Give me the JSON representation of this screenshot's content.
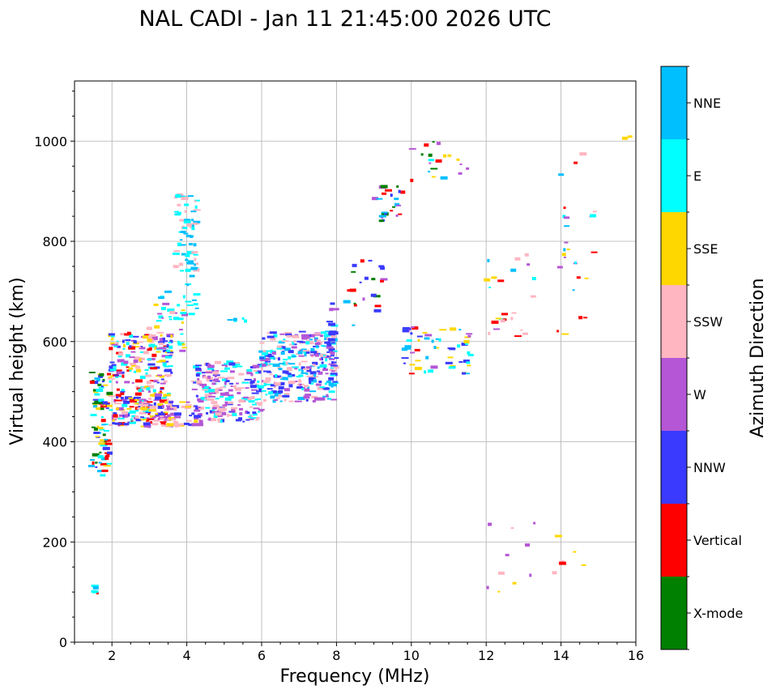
{
  "chart_data": {
    "type": "scatter",
    "title": "NAL CADI - Jan 11 21:45:00 2026 UTC",
    "xlabel": "Frequency (MHz)",
    "ylabel": "Virtual height (km)",
    "xlim": [
      1.0,
      16.0
    ],
    "ylim": [
      0,
      1120
    ],
    "xticks": [
      2,
      4,
      6,
      8,
      10,
      12,
      14,
      16
    ],
    "yticks": [
      0,
      200,
      400,
      600,
      800,
      1000
    ],
    "grid": true,
    "colorbar": {
      "label": "Azimuth Direction",
      "categories": [
        {
          "name": "X-mode",
          "color": "#008000"
        },
        {
          "name": "Vertical",
          "color": "#ff0000"
        },
        {
          "name": "NNW",
          "color": "#3a3aff"
        },
        {
          "name": "W",
          "color": "#b556d6"
        },
        {
          "name": "SSW",
          "color": "#ffb6c1"
        },
        {
          "name": "SSE",
          "color": "#ffd700"
        },
        {
          "name": "E",
          "color": "#00ffff"
        },
        {
          "name": "NNE",
          "color": "#00bfff"
        }
      ]
    },
    "clusters": [
      {
        "x": [
          1.45,
          1.95
        ],
        "y": [
          330,
          540
        ],
        "n": 90,
        "dirs": [
          "Vertical",
          "NNW",
          "SSE",
          "E",
          "X-mode",
          "NNE"
        ]
      },
      {
        "x": [
          1.5,
          1.65
        ],
        "y": [
          90,
          115
        ],
        "n": 6,
        "dirs": [
          "E",
          "NNE",
          "Vertical"
        ]
      },
      {
        "x": [
          1.95,
          3.6
        ],
        "y": [
          430,
          620
        ],
        "n": 320,
        "dirs": [
          "SSE",
          "SSW",
          "E",
          "W",
          "NNW",
          "Vertical"
        ]
      },
      {
        "x": [
          3.0,
          3.95
        ],
        "y": [
          580,
          680
        ],
        "n": 30,
        "dirs": [
          "E",
          "SSW",
          "SSE",
          "W"
        ]
      },
      {
        "x": [
          2.7,
          4.4
        ],
        "y": [
          430,
          480
        ],
        "n": 70,
        "dirs": [
          "W",
          "NNW",
          "SSE",
          "SSW"
        ]
      },
      {
        "x": [
          3.7,
          4.3
        ],
        "y": [
          730,
          895
        ],
        "n": 70,
        "dirs": [
          "E",
          "NNE",
          "SSW"
        ]
      },
      {
        "x": [
          3.2,
          4.3
        ],
        "y": [
          620,
          720
        ],
        "n": 18,
        "dirs": [
          "E",
          "NNE"
        ]
      },
      {
        "x": [
          4.2,
          6.0
        ],
        "y": [
          440,
          560
        ],
        "n": 220,
        "dirs": [
          "W",
          "NNW",
          "SSW",
          "E"
        ]
      },
      {
        "x": [
          5.0,
          5.6
        ],
        "y": [
          640,
          648
        ],
        "n": 5,
        "dirs": [
          "E",
          "NNE"
        ]
      },
      {
        "x": [
          6.0,
          8.0
        ],
        "y": [
          480,
          620
        ],
        "n": 300,
        "dirs": [
          "NNW",
          "W",
          "SSW",
          "E",
          "NNE"
        ]
      },
      {
        "x": [
          7.8,
          8.1
        ],
        "y": [
          540,
          705
        ],
        "n": 14,
        "dirs": [
          "NNW",
          "W",
          "E"
        ]
      },
      {
        "x": [
          8.2,
          9.3
        ],
        "y": [
          620,
          770
        ],
        "n": 22,
        "dirs": [
          "NNE",
          "NNW",
          "X-mode",
          "W",
          "Vertical"
        ]
      },
      {
        "x": [
          9.0,
          9.8
        ],
        "y": [
          840,
          910
        ],
        "n": 24,
        "dirs": [
          "X-mode",
          "Vertical",
          "NNW",
          "NNE",
          "W"
        ]
      },
      {
        "x": [
          9.8,
          11.6
        ],
        "y": [
          535,
          630
        ],
        "n": 60,
        "dirs": [
          "NNW",
          "NNE",
          "E",
          "W",
          "Vertical",
          "SSE"
        ]
      },
      {
        "x": [
          10.0,
          11.6
        ],
        "y": [
          920,
          1020
        ],
        "n": 20,
        "dirs": [
          "NNE",
          "E",
          "SSE",
          "Vertical",
          "X-mode",
          "W"
        ]
      },
      {
        "x": [
          12.0,
          13.3
        ],
        "y": [
          600,
          775
        ],
        "n": 24,
        "dirs": [
          "SSE",
          "NNE",
          "W",
          "Vertical",
          "SSW",
          "E"
        ]
      },
      {
        "x": [
          12.0,
          13.3
        ],
        "y": [
          90,
          240
        ],
        "n": 10,
        "dirs": [
          "SSW",
          "SSE",
          "W",
          "Vertical"
        ]
      },
      {
        "x": [
          13.8,
          15.0
        ],
        "y": [
          600,
          995
        ],
        "n": 26,
        "dirs": [
          "W",
          "SSE",
          "Vertical",
          "NNE",
          "SSW",
          "E"
        ]
      },
      {
        "x": [
          13.8,
          14.8
        ],
        "y": [
          115,
          225
        ],
        "n": 6,
        "dirs": [
          "SSE",
          "Vertical",
          "SSW"
        ]
      },
      {
        "x": [
          15.7,
          16.0
        ],
        "y": [
          1005,
          1010
        ],
        "n": 2,
        "dirs": [
          "SSE"
        ]
      }
    ]
  }
}
